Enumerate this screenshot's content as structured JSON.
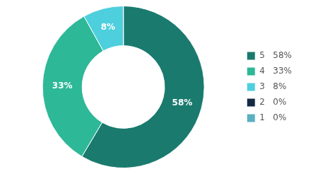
{
  "chart_data": {
    "type": "doughnut",
    "categories": [
      "5   58%",
      "4   33%",
      "3   8%",
      "2   0%",
      "1   0%"
    ],
    "values": [
      58,
      33,
      8,
      0.01,
      0.01
    ],
    "value_labels": [
      "58%",
      "33%",
      "8%",
      null,
      null
    ],
    "data_labels": true,
    "colors": [
      "#1a7a6e",
      "#2db897",
      "#4dcfdd",
      "#152844",
      "#5aafc0"
    ],
    "legend": "right"
  }
}
